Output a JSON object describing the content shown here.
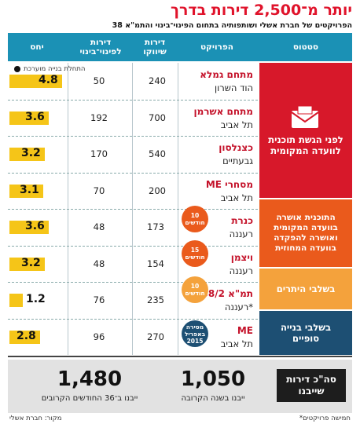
{
  "title": "יותר מ־2,500 דירות בדרך",
  "subtitle": "הפרויקטים של חברת אשלי ושותפותיה בתחום הפינוי־בינוי והתמ\"א 38",
  "legend_note": "התחלת בנייה מוערכת",
  "headers": {
    "status": "סטטוס",
    "project": "הפרויקט",
    "market": "דירות שיווקו",
    "evacuee": "דירות לפינוי־בינוי",
    "ratio": "יחס"
  },
  "statuses": [
    {
      "label": "לפני הגשת תוכנית לוועדה המקומית",
      "color": "#d7182a"
    },
    {
      "label": "התוכנית אושרה בוועדה המקומית ואושרה להפקדה בוועדה המחוזית",
      "color": "#ea5a1c"
    },
    {
      "label": "בשלבי היתרים",
      "color": "#f4a23c"
    },
    {
      "label": "בשלבי בנייה סופיים",
      "color": "#1d4f73"
    }
  ],
  "badges": [
    {
      "text": "10 חודשים",
      "color": "#ea5a1c"
    },
    {
      "text": "15 חודשים",
      "color": "#ea5a1c"
    },
    {
      "text": "10 חודשים",
      "color": "#f4a23c"
    },
    {
      "text": "מסירה באפריל 2015",
      "color": "#1d4f73"
    }
  ],
  "footer": {
    "label": "סה\"כ דירות שייבנו",
    "total1": "1,050",
    "total1_label": "ייבנו בשנה הקרובה",
    "total2": "1,480",
    "total2_label": "ייבנו ב־36 החודשים הקרובים",
    "note_left": "מקור: חברת אשלי",
    "note_right": "*חמישה פרויקטים"
  },
  "chart_data": {
    "type": "table",
    "columns": [
      "הפרויקט",
      "דירות שיווקו",
      "דירות לפינוי־בינוי",
      "יחס"
    ],
    "rows": [
      {
        "name": "מתחם גמלא",
        "city": "הוד השרון",
        "market": "240",
        "evacuee": "50",
        "ratio": 4.8,
        "ratio_label": "4.8"
      },
      {
        "name": "מתחם אשרמן",
        "city": "תל אביב",
        "market": "700",
        "evacuee": "192",
        "ratio": 3.6,
        "ratio_label": "3.6"
      },
      {
        "name": "כצנלסון",
        "city": "גבעתיים",
        "market": "540",
        "evacuee": "170",
        "ratio": 3.2,
        "ratio_label": "3.2"
      },
      {
        "name": "ME מסחרי",
        "city": "תל אביב",
        "market": "200",
        "evacuee": "70",
        "ratio": 3.1,
        "ratio_label": "3.1"
      },
      {
        "name": "כנרת",
        "city": "רעננה",
        "market": "173",
        "evacuee": "48",
        "ratio": 3.6,
        "ratio_label": "3.6"
      },
      {
        "name": "ויצמן",
        "city": "רעננה",
        "market": "154",
        "evacuee": "48",
        "ratio": 3.2,
        "ratio_label": "3.2"
      },
      {
        "name": "תמ\"א 38/2",
        "city": "רעננה*",
        "market": "235",
        "evacuee": "76",
        "ratio": 1.2,
        "ratio_label": "1.2"
      },
      {
        "name": "ME",
        "city": "תל אביב",
        "market": "270",
        "evacuee": "96",
        "ratio": 2.8,
        "ratio_label": "2.8"
      }
    ],
    "ratio_max": 5
  }
}
